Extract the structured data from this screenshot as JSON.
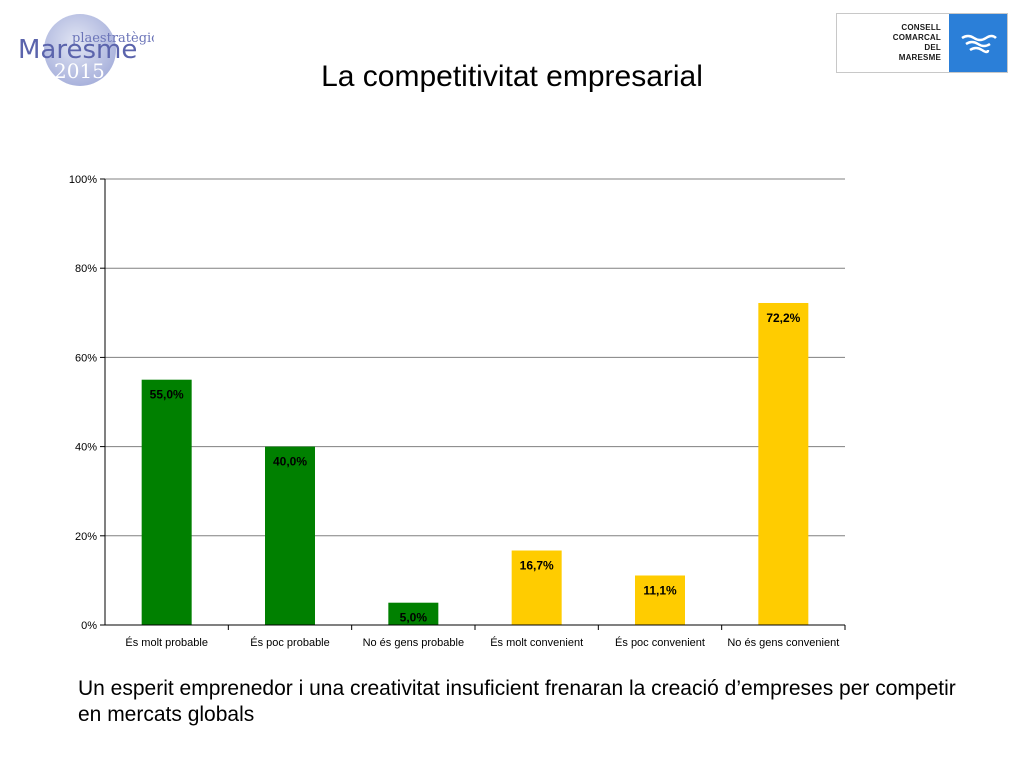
{
  "logo": {
    "line1": "plaestratègic",
    "line2": "Maresme",
    "line3": "2015"
  },
  "council_logo": {
    "lines": [
      "CONSELL",
      "COMARCAL",
      "DEL",
      "MARESME"
    ],
    "color": "#2b7fd8"
  },
  "title": "La competitivitat empresarial",
  "caption": "Un esperit emprenedor i una creativitat insuficient frenaran la creació d’empreses per competir en mercats globals",
  "chart_data": {
    "type": "bar",
    "title": "",
    "xlabel": "",
    "ylabel": "",
    "ylim": [
      0,
      100
    ],
    "yticks": [
      "0%",
      "20%",
      "40%",
      "60%",
      "80%",
      "100%"
    ],
    "grid": true,
    "legend": "none",
    "categories": [
      "És molt probable",
      "És poc probable",
      "No és gens probable",
      "És molt convenient",
      "És poc convenient",
      "No és gens convenient"
    ],
    "values": [
      55.0,
      40.0,
      5.0,
      16.7,
      11.1,
      72.2
    ],
    "value_labels": [
      "55,0%",
      "40,0%",
      "5,0%",
      "16,7%",
      "11,1%",
      "72,2%"
    ],
    "colors": [
      "#008000",
      "#008000",
      "#008000",
      "#ffcc00",
      "#ffcc00",
      "#ffcc00"
    ]
  }
}
